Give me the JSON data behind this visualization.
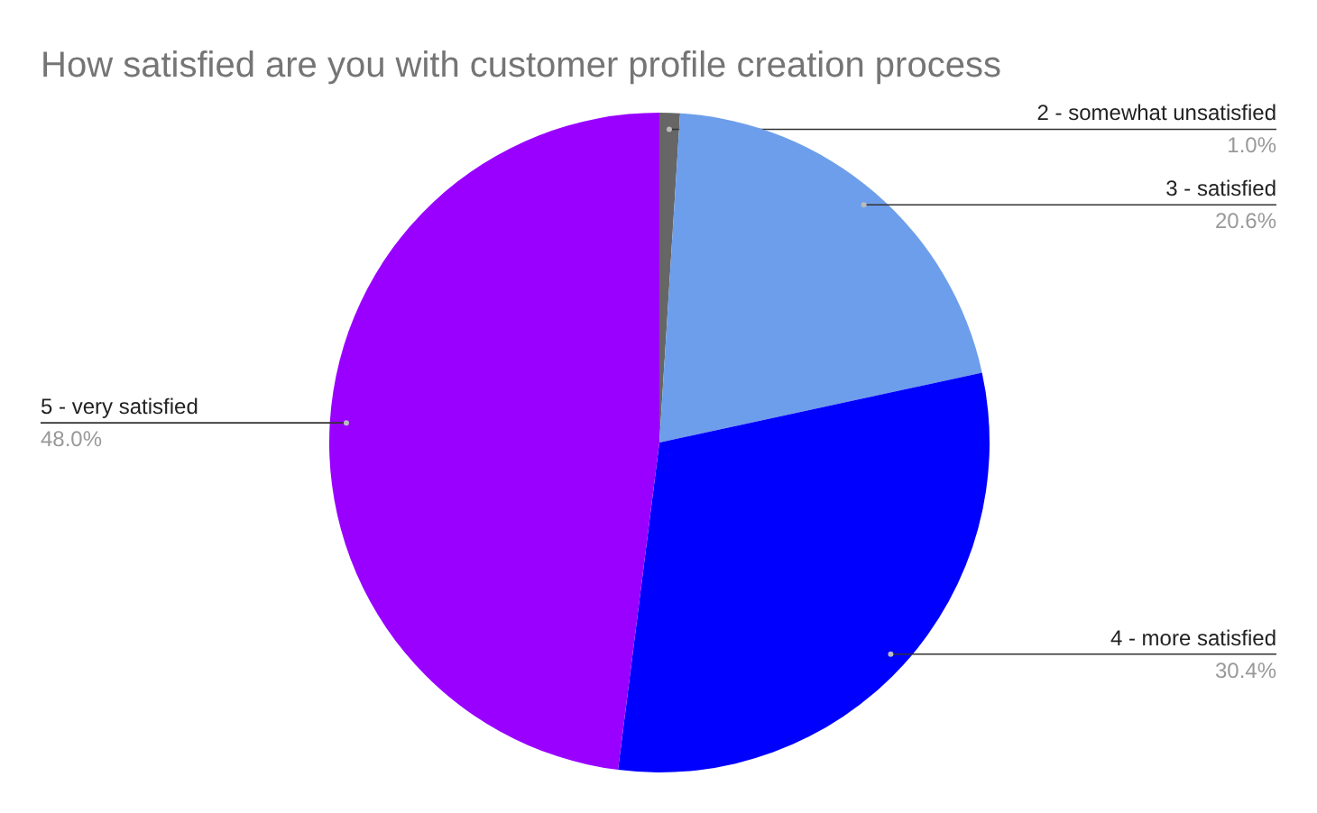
{
  "chart_data": {
    "type": "pie",
    "title": "How satisfied are you with customer profile creation process",
    "categories": [
      "2 - somewhat unsatisfied",
      "3 - satisfied",
      "4 - more satisfied",
      "5 - very satisfied"
    ],
    "values": [
      1.0,
      20.6,
      30.4,
      48.0
    ],
    "colors": [
      "#666666",
      "#6d9eeb",
      "#0000ff",
      "#9900ff"
    ],
    "value_labels": [
      "1.0%",
      "20.6%",
      "30.4%",
      "48.0%"
    ]
  }
}
